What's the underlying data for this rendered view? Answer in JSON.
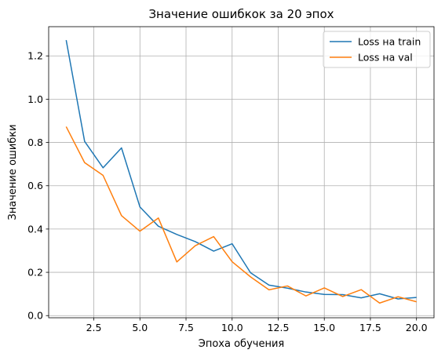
{
  "chart_data": {
    "type": "line",
    "title": "Значение ошибкок за 20 эпох",
    "xlabel": "Эпоха обучения",
    "ylabel": "Значение ошибки",
    "xlim": [
      0.05,
      20.95
    ],
    "ylim": [
      -0.01,
      1.335
    ],
    "xticks": [
      2.5,
      5.0,
      7.5,
      10.0,
      12.5,
      15.0,
      17.5,
      20.0
    ],
    "xtick_labels": [
      "2.5",
      "5.0",
      "7.5",
      "10.0",
      "12.5",
      "15.0",
      "17.5",
      "20.0"
    ],
    "yticks": [
      0.0,
      0.2,
      0.4,
      0.6,
      0.8,
      1.0,
      1.2
    ],
    "ytick_labels": [
      "0.0",
      "0.2",
      "0.4",
      "0.6",
      "0.8",
      "1.0",
      "1.2"
    ],
    "grid": true,
    "legend_position": "top-right",
    "x": [
      1,
      2,
      3,
      4,
      5,
      6,
      7,
      8,
      9,
      10,
      11,
      12,
      13,
      14,
      15,
      16,
      17,
      18,
      19,
      20
    ],
    "series": [
      {
        "name": "Loss на train",
        "color": "#1f77b4",
        "values": [
          1.273,
          0.805,
          0.683,
          0.775,
          0.502,
          0.413,
          0.375,
          0.342,
          0.298,
          0.332,
          0.198,
          0.141,
          0.127,
          0.109,
          0.098,
          0.097,
          0.082,
          0.101,
          0.077,
          0.084
        ]
      },
      {
        "name": "Loss на val",
        "color": "#ff7f0e",
        "values": [
          0.873,
          0.707,
          0.648,
          0.462,
          0.39,
          0.451,
          0.248,
          0.323,
          0.365,
          0.249,
          0.179,
          0.119,
          0.137,
          0.091,
          0.128,
          0.088,
          0.12,
          0.058,
          0.087,
          0.064
        ]
      }
    ]
  }
}
